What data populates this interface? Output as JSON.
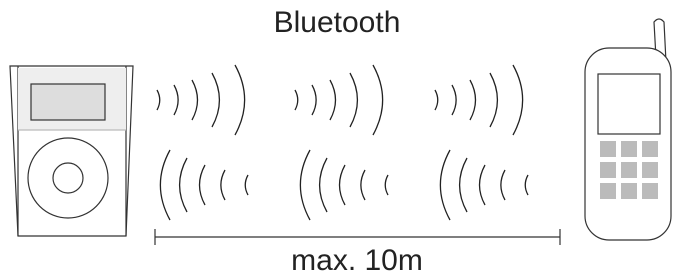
{
  "title": "Bluetooth",
  "range_label": "max. 10m"
}
